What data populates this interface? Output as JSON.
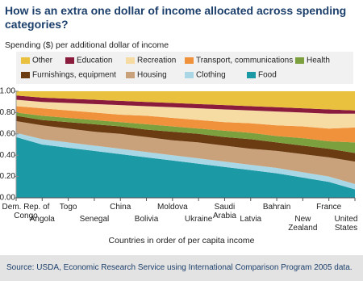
{
  "chart_data": {
    "type": "stacked-area",
    "title": "How is an extra one dollar of income allocated across spending categories?",
    "y_label": "Spending ($) per additional dollar of income",
    "x_label": "Countries in order of per capita income",
    "source": "Source:  USDA, Economic Research Service using International Comparison Program 2005 data.",
    "categories": [
      "Dem. Rep. of Congo",
      "Angola",
      "Togo",
      "Senegal",
      "China",
      "Bolivia",
      "Moldova",
      "Ukraine",
      "Saudi Arabia",
      "Latvia",
      "Bahrain",
      "New Zealand",
      "France",
      "United States"
    ],
    "ylim": [
      0,
      1
    ],
    "yticks": [
      {
        "value": 0,
        "label": "0.00"
      },
      {
        "value": 0.2,
        "label": "0.20"
      },
      {
        "value": 0.4,
        "label": "0.40"
      },
      {
        "value": 0.6,
        "label": "0.60"
      },
      {
        "value": 0.8,
        "label": "0.80"
      },
      {
        "value": 1,
        "label": "1.00"
      }
    ],
    "series": [
      {
        "name": "Food",
        "color": "#1b9aa6",
        "values": [
          0.57,
          0.5,
          0.47,
          0.44,
          0.41,
          0.38,
          0.35,
          0.32,
          0.29,
          0.26,
          0.23,
          0.19,
          0.15,
          0.08
        ]
      },
      {
        "name": "Clothing",
        "color": "#a9d7e6",
        "values": [
          0.04,
          0.05,
          0.05,
          0.05,
          0.05,
          0.05,
          0.05,
          0.05,
          0.05,
          0.05,
          0.05,
          0.05,
          0.05,
          0.05
        ]
      },
      {
        "name": "Housing",
        "color": "#c9a27c",
        "values": [
          0.11,
          0.13,
          0.13,
          0.13,
          0.14,
          0.14,
          0.14,
          0.15,
          0.15,
          0.15,
          0.16,
          0.17,
          0.18,
          0.21
        ]
      },
      {
        "name": "Furnishings, equipment",
        "color": "#6b3b12",
        "values": [
          0.05,
          0.05,
          0.06,
          0.07,
          0.07,
          0.07,
          0.08,
          0.08,
          0.08,
          0.09,
          0.08,
          0.08,
          0.08,
          0.08
        ]
      },
      {
        "name": "Health",
        "color": "#7ca03d",
        "values": [
          0.03,
          0.04,
          0.04,
          0.04,
          0.04,
          0.05,
          0.05,
          0.05,
          0.06,
          0.06,
          0.06,
          0.07,
          0.07,
          0.1
        ]
      },
      {
        "name": "Transport, communications",
        "color": "#f0913b",
        "values": [
          0.06,
          0.07,
          0.07,
          0.07,
          0.07,
          0.08,
          0.08,
          0.08,
          0.08,
          0.09,
          0.1,
          0.11,
          0.12,
          0.14
        ]
      },
      {
        "name": "Recreation",
        "color": "#f6dba3",
        "values": [
          0.06,
          0.06,
          0.07,
          0.08,
          0.09,
          0.09,
          0.1,
          0.11,
          0.12,
          0.12,
          0.13,
          0.13,
          0.14,
          0.13
        ]
      },
      {
        "name": "Education",
        "color": "#8a1b3d",
        "values": [
          0.04,
          0.04,
          0.04,
          0.04,
          0.04,
          0.04,
          0.04,
          0.04,
          0.04,
          0.04,
          0.04,
          0.04,
          0.04,
          0.03
        ]
      },
      {
        "name": "Other",
        "color": "#e9c13f",
        "values": [
          0.04,
          0.06,
          0.07,
          0.08,
          0.09,
          0.1,
          0.11,
          0.12,
          0.13,
          0.14,
          0.15,
          0.16,
          0.17,
          0.18
        ]
      }
    ]
  }
}
